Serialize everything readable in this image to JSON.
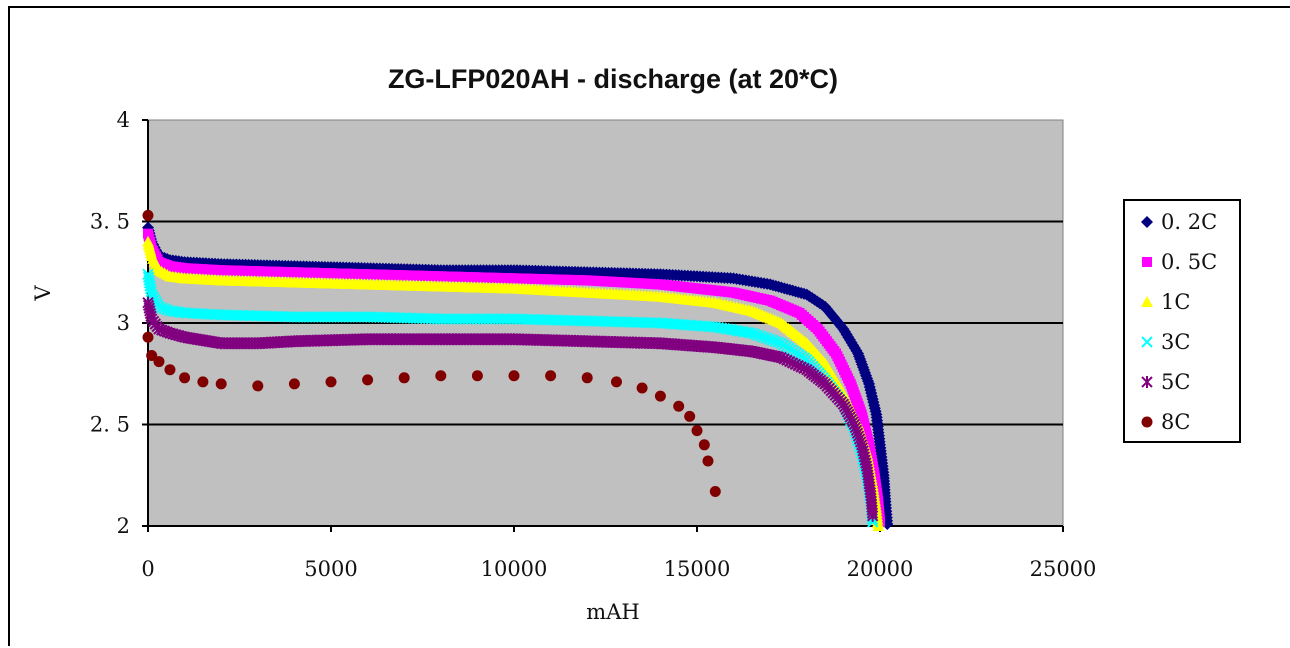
{
  "chart_data": {
    "type": "scatter",
    "title": "ZG-LFP020AH - discharge (at 20*C)",
    "xlabel": "mAH",
    "ylabel": "V",
    "xlim": [
      0,
      25000
    ],
    "ylim": [
      2,
      4
    ],
    "x_ticks": [
      "0",
      "5000",
      "10000",
      "15000",
      "20000",
      "25000"
    ],
    "y_ticks": [
      "2",
      "2. 5",
      "3",
      "3. 5",
      "4"
    ],
    "grid": "horizontal",
    "legend_position": "right",
    "plot_background": "#c0c0c0",
    "series": [
      {
        "name": "0. 2C",
        "marker": "diamond",
        "color": "#000080",
        "points": [
          [
            0,
            3.47
          ],
          [
            100,
            3.4
          ],
          [
            300,
            3.33
          ],
          [
            600,
            3.31
          ],
          [
            1000,
            3.3
          ],
          [
            2000,
            3.29
          ],
          [
            4000,
            3.28
          ],
          [
            6000,
            3.27
          ],
          [
            8000,
            3.26
          ],
          [
            10000,
            3.26
          ],
          [
            12000,
            3.25
          ],
          [
            14000,
            3.24
          ],
          [
            16000,
            3.22
          ],
          [
            17000,
            3.19
          ],
          [
            18000,
            3.14
          ],
          [
            18500,
            3.08
          ],
          [
            19000,
            2.97
          ],
          [
            19400,
            2.85
          ],
          [
            19700,
            2.7
          ],
          [
            19900,
            2.55
          ],
          [
            20000,
            2.4
          ],
          [
            20100,
            2.25
          ],
          [
            20150,
            2.12
          ],
          [
            20200,
            2.01
          ]
        ]
      },
      {
        "name": "0. 5C",
        "marker": "square",
        "color": "#ff00ff",
        "points": [
          [
            0,
            3.44
          ],
          [
            100,
            3.37
          ],
          [
            300,
            3.3
          ],
          [
            600,
            3.28
          ],
          [
            1000,
            3.27
          ],
          [
            2000,
            3.26
          ],
          [
            4000,
            3.25
          ],
          [
            6000,
            3.24
          ],
          [
            8000,
            3.23
          ],
          [
            10000,
            3.22
          ],
          [
            12000,
            3.21
          ],
          [
            14000,
            3.19
          ],
          [
            16000,
            3.15
          ],
          [
            17000,
            3.11
          ],
          [
            17800,
            3.05
          ],
          [
            18300,
            2.97
          ],
          [
            18800,
            2.85
          ],
          [
            19200,
            2.7
          ],
          [
            19500,
            2.55
          ],
          [
            19700,
            2.4
          ],
          [
            19850,
            2.25
          ],
          [
            19950,
            2.12
          ],
          [
            20000,
            2.02
          ]
        ]
      },
      {
        "name": "1C",
        "marker": "triangle",
        "color": "#ffff00",
        "points": [
          [
            0,
            3.4
          ],
          [
            100,
            3.33
          ],
          [
            300,
            3.26
          ],
          [
            600,
            3.23
          ],
          [
            1000,
            3.22
          ],
          [
            2000,
            3.21
          ],
          [
            4000,
            3.2
          ],
          [
            6000,
            3.19
          ],
          [
            8000,
            3.18
          ],
          [
            10000,
            3.17
          ],
          [
            12000,
            3.15
          ],
          [
            14000,
            3.13
          ],
          [
            15500,
            3.1
          ],
          [
            16500,
            3.06
          ],
          [
            17300,
            3.0
          ],
          [
            18000,
            2.9
          ],
          [
            18500,
            2.8
          ],
          [
            19000,
            2.65
          ],
          [
            19400,
            2.5
          ],
          [
            19650,
            2.35
          ],
          [
            19800,
            2.2
          ],
          [
            19900,
            2.08
          ],
          [
            19950,
            2.0
          ]
        ]
      },
      {
        "name": "3C",
        "marker": "x",
        "color": "#00ffff",
        "points": [
          [
            0,
            3.24
          ],
          [
            100,
            3.14
          ],
          [
            300,
            3.08
          ],
          [
            600,
            3.06
          ],
          [
            1000,
            3.05
          ],
          [
            2000,
            3.04
          ],
          [
            4000,
            3.03
          ],
          [
            6000,
            3.03
          ],
          [
            8000,
            3.02
          ],
          [
            10000,
            3.02
          ],
          [
            12000,
            3.01
          ],
          [
            14000,
            3.0
          ],
          [
            15500,
            2.98
          ],
          [
            16500,
            2.95
          ],
          [
            17300,
            2.9
          ],
          [
            18000,
            2.82
          ],
          [
            18500,
            2.72
          ],
          [
            19000,
            2.6
          ],
          [
            19300,
            2.48
          ],
          [
            19500,
            2.36
          ],
          [
            19650,
            2.24
          ],
          [
            19750,
            2.12
          ],
          [
            19800,
            2.02
          ]
        ]
      },
      {
        "name": "5C",
        "marker": "asterisk",
        "color": "#800080",
        "points": [
          [
            0,
            3.1
          ],
          [
            100,
            3.02
          ],
          [
            300,
            2.97
          ],
          [
            600,
            2.95
          ],
          [
            1000,
            2.93
          ],
          [
            2000,
            2.9
          ],
          [
            3000,
            2.9
          ],
          [
            4000,
            2.91
          ],
          [
            6000,
            2.92
          ],
          [
            8000,
            2.92
          ],
          [
            10000,
            2.92
          ],
          [
            12000,
            2.91
          ],
          [
            14000,
            2.9
          ],
          [
            15500,
            2.88
          ],
          [
            16500,
            2.86
          ],
          [
            17300,
            2.83
          ],
          [
            18000,
            2.77
          ],
          [
            18500,
            2.7
          ],
          [
            19000,
            2.6
          ],
          [
            19300,
            2.5
          ],
          [
            19500,
            2.4
          ],
          [
            19650,
            2.28
          ],
          [
            19750,
            2.15
          ],
          [
            19800,
            2.05
          ]
        ]
      },
      {
        "name": "8C",
        "marker": "circle",
        "color": "#800000",
        "points": [
          [
            0,
            3.53
          ],
          [
            0,
            2.93
          ],
          [
            100,
            2.84
          ],
          [
            300,
            2.81
          ],
          [
            600,
            2.77
          ],
          [
            1000,
            2.73
          ],
          [
            1500,
            2.71
          ],
          [
            2000,
            2.7
          ],
          [
            3000,
            2.69
          ],
          [
            4000,
            2.7
          ],
          [
            5000,
            2.71
          ],
          [
            6000,
            2.72
          ],
          [
            7000,
            2.73
          ],
          [
            8000,
            2.74
          ],
          [
            9000,
            2.74
          ],
          [
            10000,
            2.74
          ],
          [
            11000,
            2.74
          ],
          [
            12000,
            2.73
          ],
          [
            12800,
            2.71
          ],
          [
            13500,
            2.68
          ],
          [
            14000,
            2.64
          ],
          [
            14500,
            2.59
          ],
          [
            14800,
            2.54
          ],
          [
            15000,
            2.47
          ],
          [
            15200,
            2.4
          ],
          [
            15300,
            2.32
          ],
          [
            15500,
            2.17
          ]
        ]
      }
    ]
  }
}
